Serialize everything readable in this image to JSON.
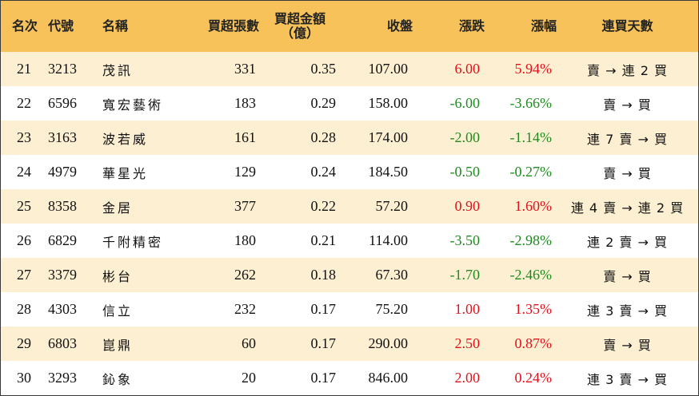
{
  "headers": {
    "rank": "名次",
    "code": "代號",
    "name": "名稱",
    "buy_lots": "買超張數",
    "buy_amount_line1": "買超金額",
    "buy_amount_line2": "（億）",
    "close": "收盤",
    "change": "漲跌",
    "pct": "漲幅",
    "streak": "連買天數"
  },
  "rows": [
    {
      "rank": "21",
      "code": "3213",
      "name": "茂訊",
      "buy_lots": "331",
      "buy_amount": "0.35",
      "close": "107.00",
      "change": "6.00",
      "pct": "5.94%",
      "direction": "up",
      "streak": "賣 → 連 2 買"
    },
    {
      "rank": "22",
      "code": "6596",
      "name": "寬宏藝術",
      "buy_lots": "183",
      "buy_amount": "0.29",
      "close": "158.00",
      "change": "-6.00",
      "pct": "-3.66%",
      "direction": "down",
      "streak": "賣 → 買"
    },
    {
      "rank": "23",
      "code": "3163",
      "name": "波若威",
      "buy_lots": "161",
      "buy_amount": "0.28",
      "close": "174.00",
      "change": "-2.00",
      "pct": "-1.14%",
      "direction": "down",
      "streak": "連 7 賣 → 買"
    },
    {
      "rank": "24",
      "code": "4979",
      "name": "華星光",
      "buy_lots": "129",
      "buy_amount": "0.24",
      "close": "184.50",
      "change": "-0.50",
      "pct": "-0.27%",
      "direction": "down",
      "streak": "賣 → 買"
    },
    {
      "rank": "25",
      "code": "8358",
      "name": "金居",
      "buy_lots": "377",
      "buy_amount": "0.22",
      "close": "57.20",
      "change": "0.90",
      "pct": "1.60%",
      "direction": "up",
      "streak": "連 4 賣 → 連 2 買"
    },
    {
      "rank": "26",
      "code": "6829",
      "name": "千附精密",
      "buy_lots": "180",
      "buy_amount": "0.21",
      "close": "114.00",
      "change": "-3.50",
      "pct": "-2.98%",
      "direction": "down",
      "streak": "連 2 賣 → 買"
    },
    {
      "rank": "27",
      "code": "3379",
      "name": "彬台",
      "buy_lots": "262",
      "buy_amount": "0.18",
      "close": "67.30",
      "change": "-1.70",
      "pct": "-2.46%",
      "direction": "down",
      "streak": "賣 → 買"
    },
    {
      "rank": "28",
      "code": "4303",
      "name": "信立",
      "buy_lots": "232",
      "buy_amount": "0.17",
      "close": "75.20",
      "change": "1.00",
      "pct": "1.35%",
      "direction": "up",
      "streak": "連 3 賣 → 買"
    },
    {
      "rank": "29",
      "code": "6803",
      "name": "崑鼎",
      "buy_lots": "60",
      "buy_amount": "0.17",
      "close": "290.00",
      "change": "2.50",
      "pct": "0.87%",
      "direction": "up",
      "streak": "賣 → 買"
    },
    {
      "rank": "30",
      "code": "3293",
      "name": "鈊象",
      "buy_lots": "20",
      "buy_amount": "0.17",
      "close": "846.00",
      "change": "2.00",
      "pct": "0.24%",
      "direction": "up",
      "streak": "連 3 賣 → 買"
    }
  ],
  "colors": {
    "header_bg": "#f7c25a",
    "stripe_bg": "#fdf0d2",
    "up": "#e0121b",
    "down": "#1f8a1f"
  }
}
